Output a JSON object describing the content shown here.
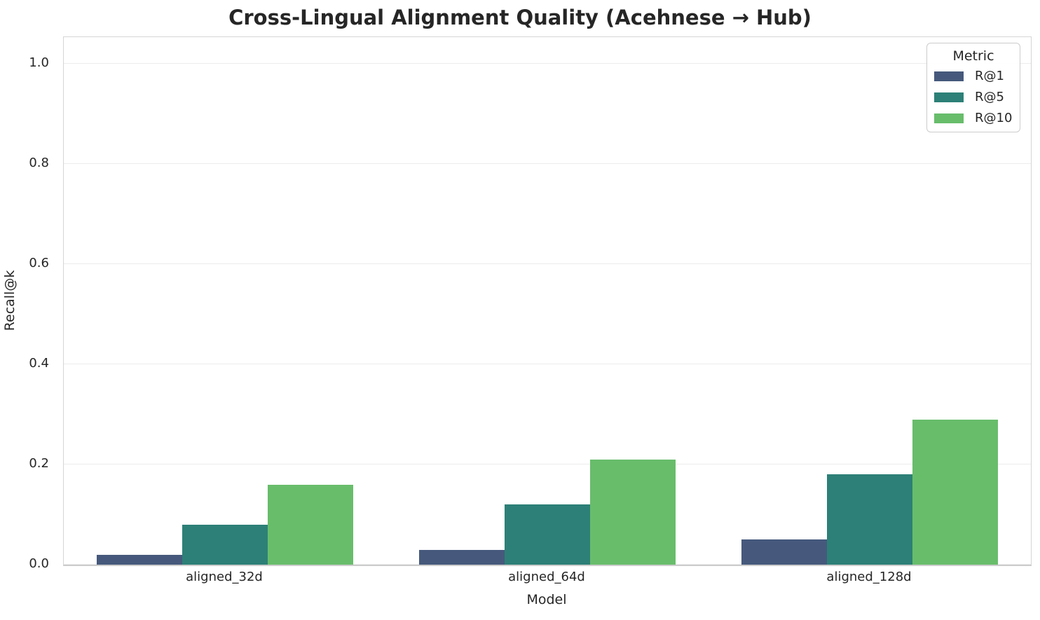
{
  "chart_data": {
    "type": "bar",
    "title": "Cross-Lingual Alignment Quality (Acehnese → Hub)",
    "xlabel": "Model",
    "ylabel": "Recall@k",
    "categories": [
      "aligned_32d",
      "aligned_64d",
      "aligned_128d"
    ],
    "series": [
      {
        "name": "R@1",
        "color": "#46597c",
        "values": [
          0.02,
          0.03,
          0.05
        ]
      },
      {
        "name": "R@5",
        "color": "#2d8077",
        "values": [
          0.08,
          0.12,
          0.18
        ]
      },
      {
        "name": "R@10",
        "color": "#68bd6b",
        "values": [
          0.16,
          0.21,
          0.29
        ]
      }
    ],
    "legend": {
      "title": "Metric",
      "position": "upper right"
    },
    "ylim": [
      0.0,
      1.05
    ],
    "yticks": [
      "0.0",
      "0.2",
      "0.4",
      "0.6",
      "0.8",
      "1.0"
    ],
    "grid": true,
    "colors": {
      "text": "#262626",
      "gridline": "#ececec",
      "spine": "#d5d5d5",
      "baseline": "#cccccc",
      "background": "#ffffff"
    }
  }
}
